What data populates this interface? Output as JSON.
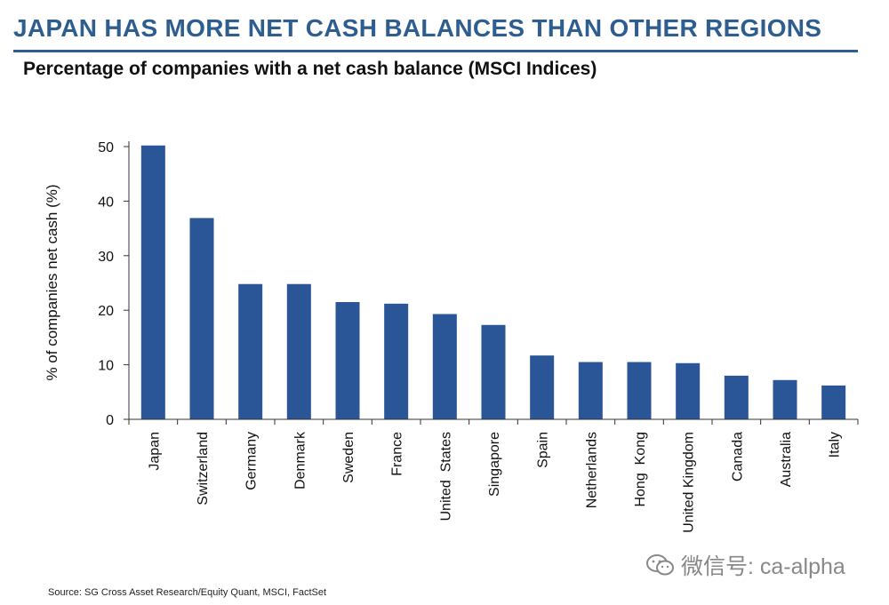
{
  "header": {
    "headline": "JAPAN HAS MORE NET CASH BALANCES THAN OTHER REGIONS",
    "subtitle": "Percentage of companies with a net cash balance (MSCI Indices)"
  },
  "source": "Source: SG Cross Asset Research/Equity Quant, MSCI, FactSet",
  "watermark": {
    "text": "微信号: ca-alpha",
    "icon": "wechat-icon"
  },
  "colors": {
    "bar": "#2a5597",
    "headline": "#2e5d8f",
    "axis": "#333333"
  },
  "chart_data": {
    "type": "bar",
    "title": "Percentage of companies with a net cash balance (MSCI Indices)",
    "ylabel": "% of companies net cash (%)",
    "xlabel": "",
    "ylim": [
      0,
      50
    ],
    "yticks": [
      0,
      10,
      20,
      30,
      40,
      50
    ],
    "grid": false,
    "categories": [
      "Japan",
      "Switzerland",
      "Germany",
      "Denmark",
      "Sweden",
      "France",
      "United  States",
      "Singapore",
      "Spain",
      "Netherlands",
      "Hong  Kong",
      "United Kingdom",
      "Canada",
      "Australia",
      "Italy"
    ],
    "values": [
      50.2,
      36.9,
      24.8,
      24.8,
      21.5,
      21.2,
      19.3,
      17.3,
      11.7,
      10.5,
      10.5,
      10.3,
      8.0,
      7.2,
      6.2
    ]
  }
}
